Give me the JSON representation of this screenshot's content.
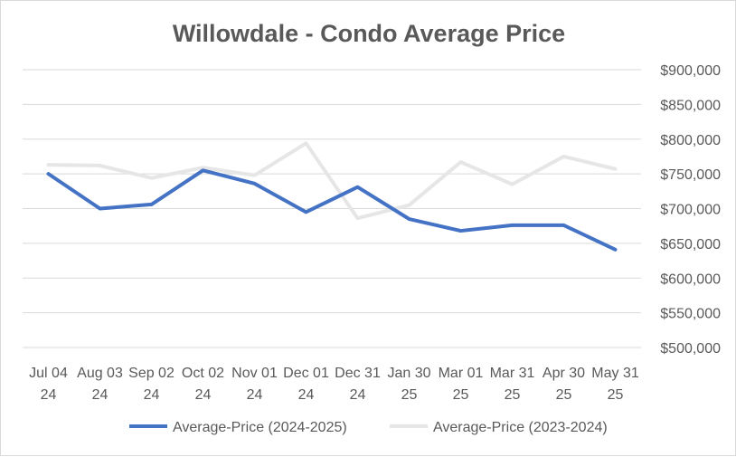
{
  "chart_data": {
    "type": "line",
    "title": "Willowdale - Condo Average Price",
    "xlabel": "",
    "ylabel": "",
    "ylim": [
      500000,
      900000
    ],
    "yticks": [
      500000,
      550000,
      600000,
      650000,
      700000,
      750000,
      800000,
      850000,
      900000
    ],
    "ytick_labels": [
      "$500,000",
      "$550,000",
      "$600,000",
      "$650,000",
      "$700,000",
      "$750,000",
      "$800,000",
      "$850,000",
      "$900,000"
    ],
    "grid": true,
    "legend_position": "bottom",
    "categories": [
      [
        "Jul 04",
        "24"
      ],
      [
        "Aug 03",
        "24"
      ],
      [
        "Sep 02",
        "24"
      ],
      [
        "Oct 02",
        "24"
      ],
      [
        "Nov 01",
        "24"
      ],
      [
        "Dec 01",
        "24"
      ],
      [
        "Dec 31",
        "24"
      ],
      [
        "Jan 30",
        "25"
      ],
      [
        "Mar 01",
        "25"
      ],
      [
        "Mar 31",
        "25"
      ],
      [
        "Apr 30",
        "25"
      ],
      [
        "May 31",
        "25"
      ]
    ],
    "series": [
      {
        "name": "Average-Price (2024-2025)",
        "color": "#4472c4",
        "values": [
          750000,
          700000,
          706000,
          755000,
          736000,
          695000,
          731000,
          685000,
          668000,
          676000,
          676000,
          641000
        ]
      },
      {
        "name": "Average-Price (2023-2024)",
        "color": "#e7e6e6",
        "values": [
          763000,
          762000,
          744000,
          759000,
          748000,
          794000,
          686000,
          705000,
          767000,
          735000,
          775000,
          757000
        ]
      }
    ]
  }
}
